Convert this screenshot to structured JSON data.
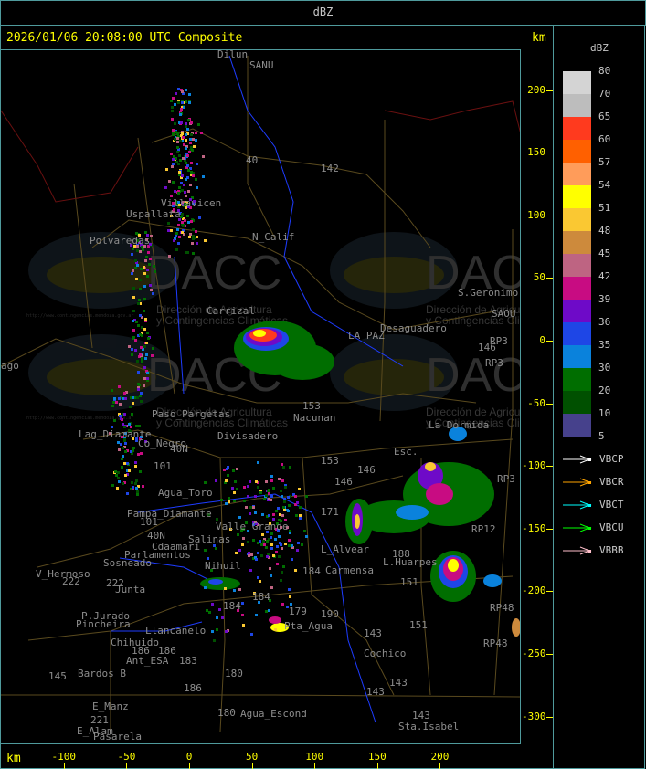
{
  "header": {
    "title": "dBZ"
  },
  "map_panel": {
    "timestamp": "2026/01/06 20:08:00 UTC Composite",
    "axis_unit": "km",
    "x_ticks": [
      "-100",
      "-50",
      "0",
      "50",
      "100",
      "150",
      "200"
    ],
    "y_ticks": [
      "200",
      "150",
      "100",
      "50",
      "0",
      "-50",
      "-100",
      "-150",
      "-200",
      "-250",
      "-300"
    ],
    "watermark": {
      "logo": "DACC",
      "line1": "Dirección de Agricultura",
      "line2": "y Contingencias Climáticas",
      "url": "http://www.contingencias.mendoza.gov.ar"
    },
    "places": [
      "Uspallata",
      "Polvaredas",
      "Villavicen",
      "N_Calif",
      "142",
      "40",
      "S.Geronimo",
      "SAOU",
      "Desaguadero",
      "LA PAZ",
      "RP3",
      "146",
      "RP3",
      "Nacunan",
      "153",
      "La Dormida",
      "Esc.",
      "146",
      "153",
      "146",
      "171",
      "RP12",
      "RP3",
      "L.Huarpes",
      "Carmensa",
      "188",
      "151",
      "151",
      "RP48",
      "RP48",
      "143",
      "Cochico",
      "143",
      "143",
      "Sta.Isabel",
      "184",
      "179",
      "190",
      "Pta_Agua",
      "Divisadero",
      "Lag_Diamante",
      "Co_Negro",
      "40N",
      "101",
      "Agua_Toro",
      "Pampa_Diamante",
      "101",
      "40N",
      "Salinas",
      "Cdaamari",
      "Parlamentos",
      "Sosneado",
      "V_Hermoso",
      "222",
      "222",
      "Junta",
      "P.Jurado",
      "Pincheira",
      "Llancanelo",
      "Chihuido",
      "186",
      "186",
      "Ant_ESA",
      "183",
      "145",
      "Bardos_B",
      "180",
      "186",
      "E_Manz",
      "221",
      "E_Alam",
      "Pasarela",
      "180",
      "Agua_Escond",
      "Nihuil",
      "Valle_Grande",
      "184",
      "184",
      "143",
      "Carrizal",
      "Paso_Pargetas",
      "Dilun",
      "SANU",
      "ago",
      "L_Alvear"
    ]
  },
  "legend": {
    "title": "dBZ",
    "scale": [
      {
        "label": "80",
        "color": "#d4d4d4"
      },
      {
        "label": "70",
        "color": "#bdbdbd"
      },
      {
        "label": "65",
        "color": "#ff3a1e"
      },
      {
        "label": "60",
        "color": "#ff6000"
      },
      {
        "label": "57",
        "color": "#ff9c5a"
      },
      {
        "label": "54",
        "color": "#ffff00"
      },
      {
        "label": "51",
        "color": "#fac832"
      },
      {
        "label": "48",
        "color": "#cd8a3c"
      },
      {
        "label": "45",
        "color": "#be6482"
      },
      {
        "label": "42",
        "color": "#c80c82"
      },
      {
        "label": "39",
        "color": "#6e0ac8"
      },
      {
        "label": "36",
        "color": "#1e46e6"
      },
      {
        "label": "35",
        "color": "#0a82dc"
      },
      {
        "label": "30",
        "color": "#006e00"
      },
      {
        "label": "20",
        "color": "#005000"
      },
      {
        "label": "10",
        "color": "#46418c"
      }
    ],
    "bottom_label": "5",
    "radars": [
      {
        "label": "VBCP",
        "color": "#ffffff"
      },
      {
        "label": "VBCR",
        "color": "#ffa500"
      },
      {
        "label": "VBCT",
        "color": "#00ffff"
      },
      {
        "label": "VBCU",
        "color": "#00ff00"
      },
      {
        "label": "VBBB",
        "color": "#ffc0cb"
      }
    ]
  }
}
